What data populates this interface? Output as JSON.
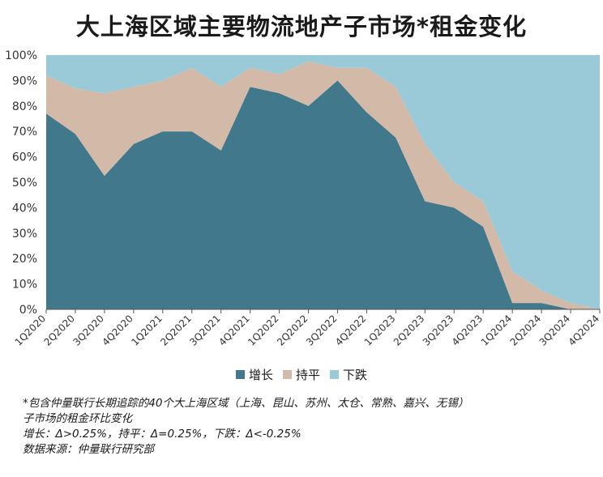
{
  "title": "大上海区域主要物流地产子市场*租金变化",
  "colors": {
    "increase": "#41788c",
    "flat": "#d3b9a7",
    "decrease": "#9ac9d8",
    "axis": "#333333"
  },
  "chart_data": {
    "type": "area",
    "stacked": true,
    "categories": [
      "1Q2020",
      "2Q2020",
      "3Q2020",
      "4Q2020",
      "1Q2021",
      "2Q2021",
      "3Q2021",
      "4Q2021",
      "1Q2022",
      "2Q2022",
      "3Q2022",
      "4Q2022",
      "1Q2023",
      "2Q2023",
      "3Q2023",
      "4Q2023",
      "1Q2024",
      "2Q2024",
      "3Q2024",
      "4Q2024"
    ],
    "series": [
      {
        "name": "增长",
        "values": [
          77,
          69,
          52.5,
          65,
          70,
          70,
          62.5,
          87.5,
          85,
          80,
          90,
          77.5,
          67.5,
          42.5,
          40,
          32.5,
          2.5,
          2.5,
          0,
          0
        ]
      },
      {
        "name": "持平",
        "values": [
          15,
          18,
          32.5,
          22.5,
          20,
          25,
          25,
          7.5,
          7.5,
          17.5,
          5,
          17.5,
          20,
          22.5,
          10,
          10,
          12.5,
          5,
          2.5,
          0
        ]
      },
      {
        "name": "下跌",
        "values": [
          8,
          13,
          15,
          12.5,
          10,
          5,
          12.5,
          5,
          7.5,
          2.5,
          5,
          5,
          12.5,
          35,
          50,
          57.5,
          85,
          92.5,
          97.5,
          100
        ]
      }
    ],
    "ylim": [
      0,
      100
    ],
    "yticks": [
      "0%",
      "10%",
      "20%",
      "30%",
      "40%",
      "50%",
      "60%",
      "70%",
      "80%",
      "90%",
      "100%"
    ],
    "legend_position": "bottom"
  },
  "footnote": {
    "line1": "*包含仲量联行长期追踪的40个大上海区域（上海、昆山、苏州、太仓、常熟、嘉兴、无锡）",
    "line2": "子市场的租金环比变化",
    "line3": "增长：Δ>0.25%，持平：Δ=0.25%，下跌：Δ<-0.25%",
    "line4": "数据来源：仲量联行研究部"
  }
}
